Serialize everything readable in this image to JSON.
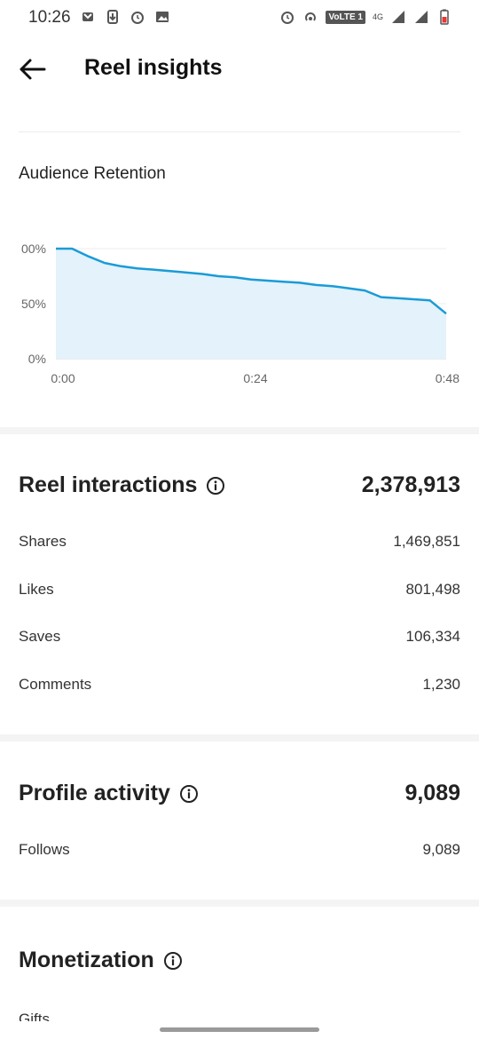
{
  "status_bar": {
    "time": "10:26",
    "volte": "VoLTE 1",
    "network": "4G"
  },
  "header": {
    "title": "Reel insights"
  },
  "retention": {
    "title": "Audience Retention"
  },
  "chart_data": {
    "type": "area",
    "title": "",
    "xlabel": "",
    "ylabel": "",
    "x_tick_labels": [
      "0:00",
      "0:24",
      "0:48"
    ],
    "y_tick_labels": [
      "0%",
      "50%",
      "00%"
    ],
    "x_seconds": [
      0,
      2,
      4,
      6,
      8,
      10,
      12,
      15,
      18,
      20,
      22,
      24,
      26,
      28,
      30,
      32,
      34,
      36,
      38,
      40,
      42,
      44,
      46,
      48
    ],
    "values": [
      100,
      100,
      93,
      87,
      84,
      82,
      81,
      79,
      77,
      75,
      74,
      72,
      71,
      70,
      69,
      67,
      66,
      64,
      62,
      56,
      55,
      54,
      53,
      41
    ],
    "xlim": [
      0,
      48
    ],
    "ylim": [
      0,
      100
    ],
    "line_color": "#1a9bd7",
    "fill_color": "#e3f2fb",
    "grid": true
  },
  "interactions": {
    "title": "Reel interactions",
    "total": "2,378,913",
    "rows": [
      {
        "label": "Shares",
        "value": "1,469,851"
      },
      {
        "label": "Likes",
        "value": "801,498"
      },
      {
        "label": "Saves",
        "value": "106,334"
      },
      {
        "label": "Comments",
        "value": "1,230"
      }
    ]
  },
  "profile": {
    "title": "Profile activity",
    "total": "9,089",
    "rows": [
      {
        "label": "Follows",
        "value": "9,089"
      }
    ]
  },
  "monetization": {
    "title": "Monetization",
    "partial_row": "Gifts"
  }
}
